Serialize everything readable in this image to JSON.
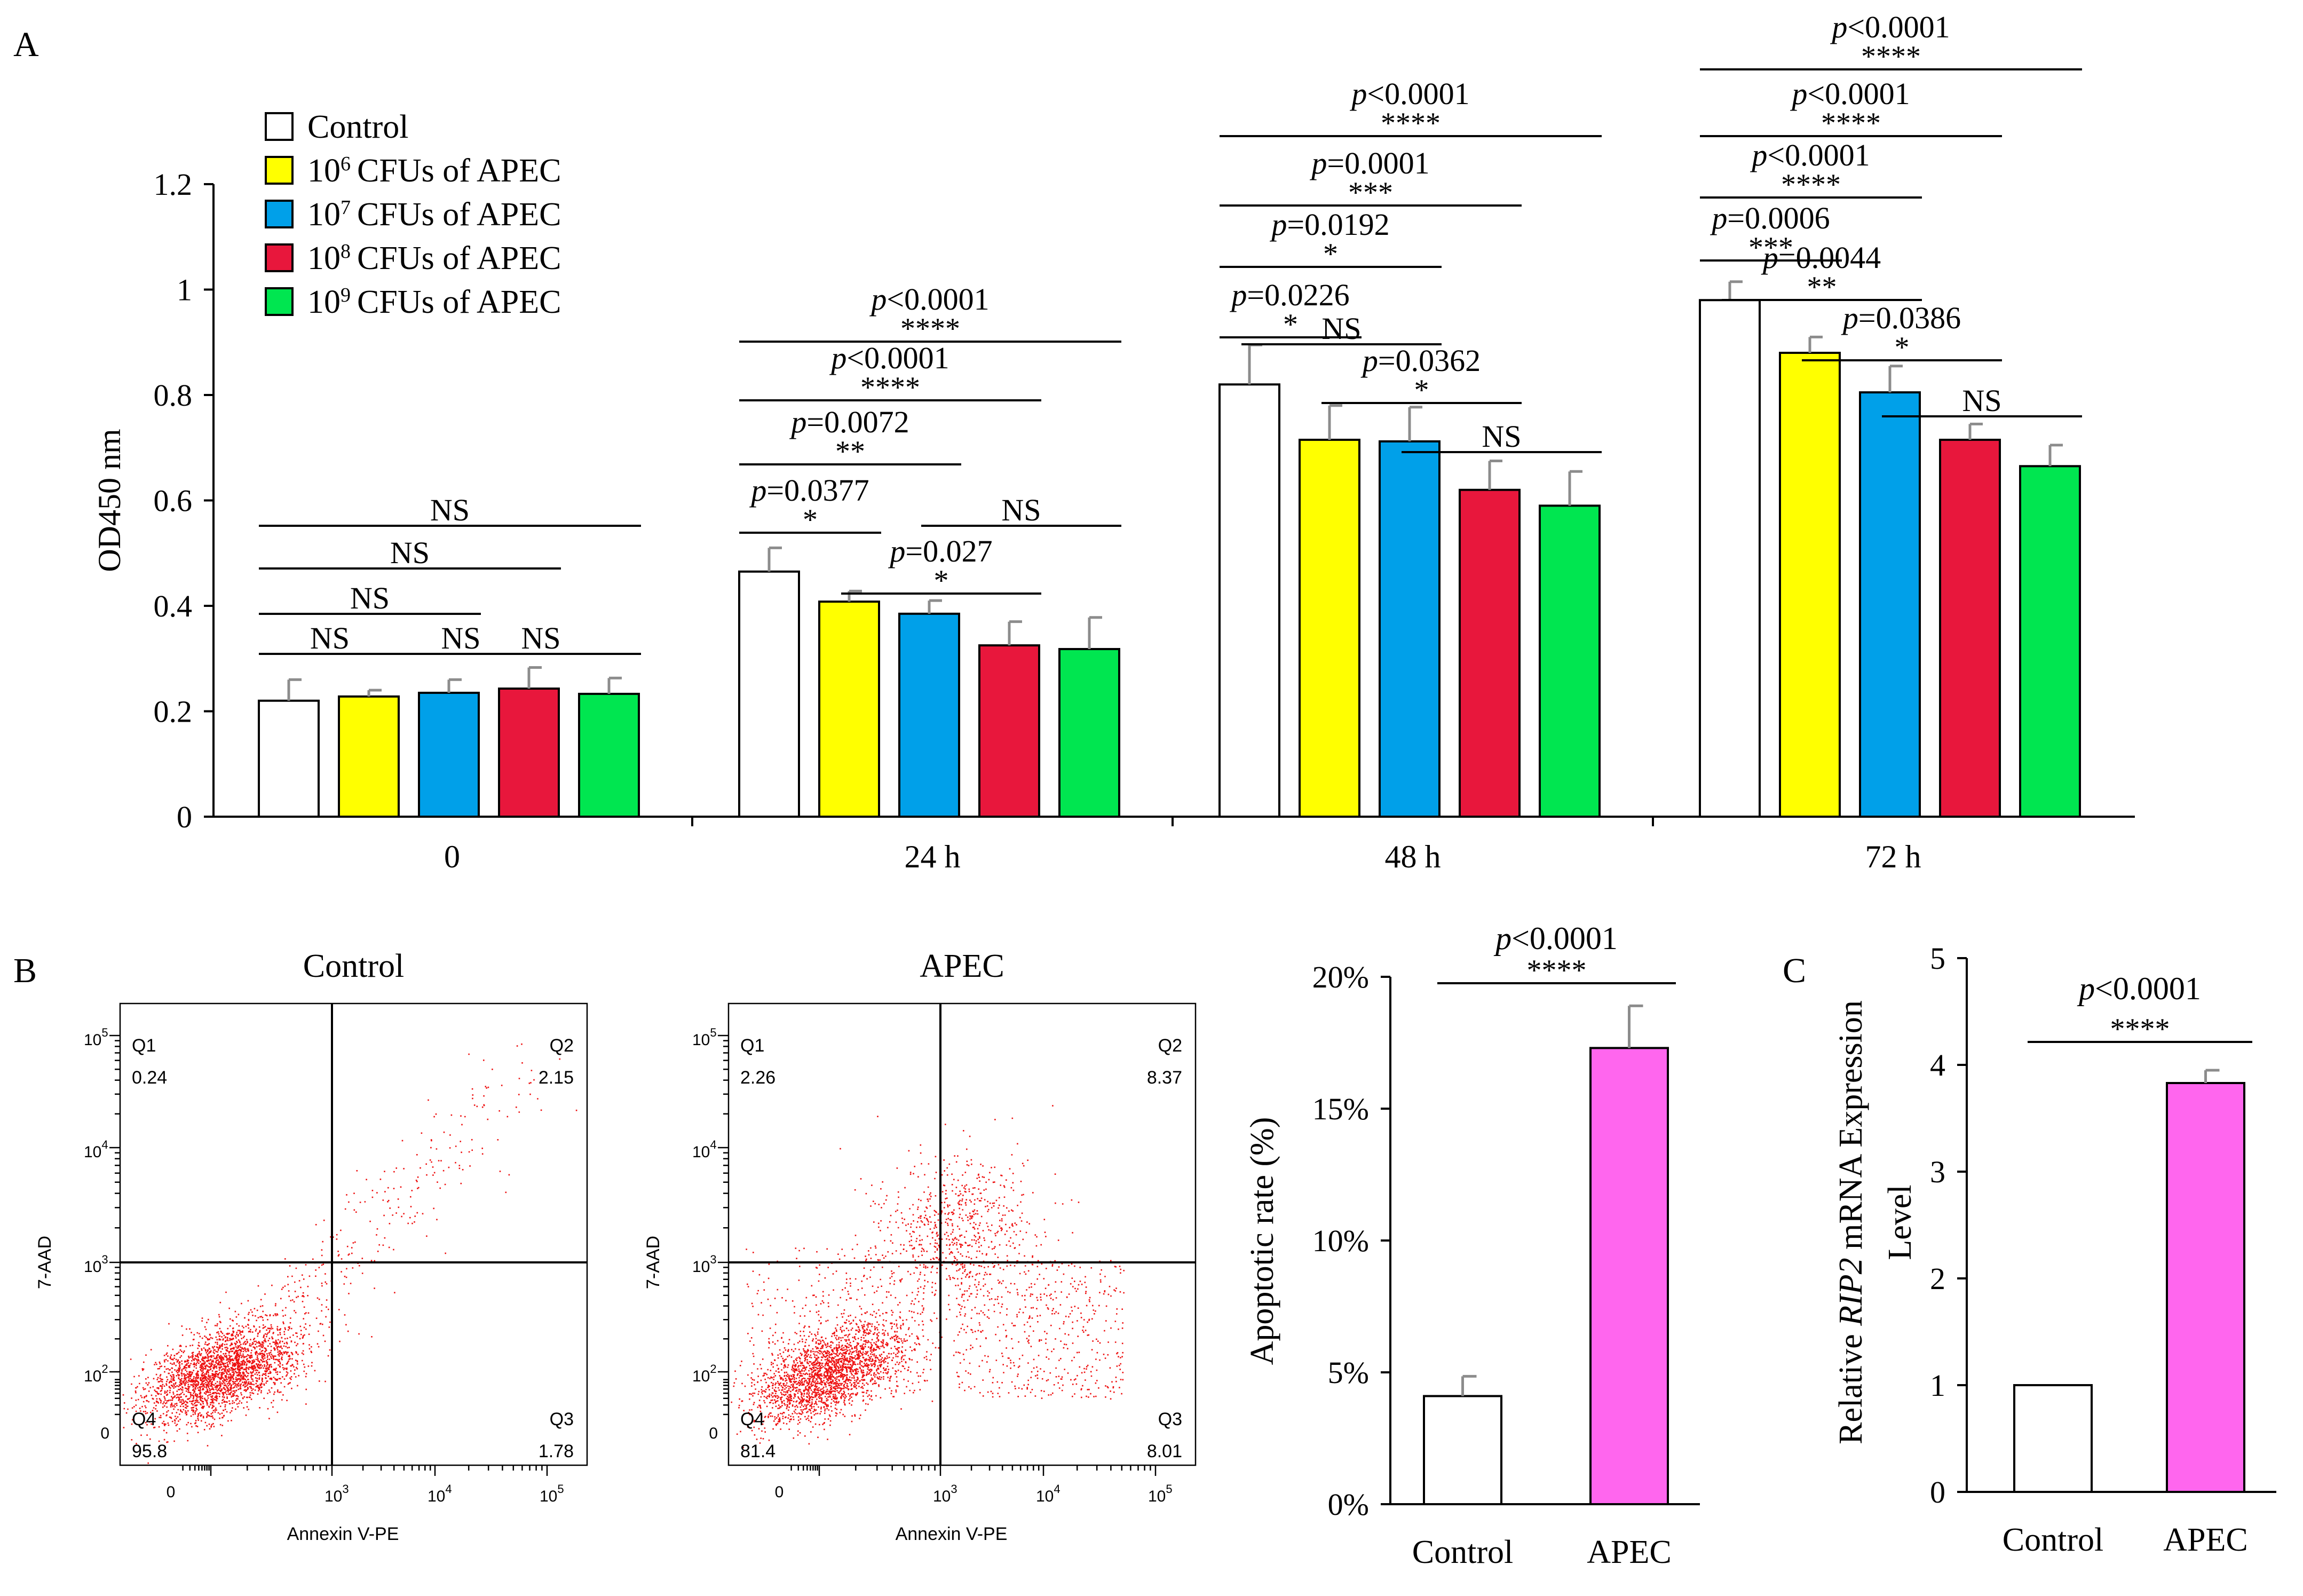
{
  "chart_data": [
    {
      "panel": "A",
      "type": "bar",
      "ylabel": "OD450 nm",
      "ylim": [
        0,
        1.2
      ],
      "yticks": [
        "0",
        "0.2",
        "0.4",
        "0.6",
        "0.8",
        "1",
        "1.2"
      ],
      "categories": [
        "0",
        "24 h",
        "48 h",
        "72 h"
      ],
      "colors": [
        "#ffffff",
        "#ffff00",
        "#00a0e9",
        "#e8173c",
        "#00e650"
      ],
      "series": [
        {
          "name": "Control",
          "values": [
            0.22,
            0.465,
            0.82,
            0.98
          ],
          "errors": [
            0.04,
            0.045,
            0.075,
            0.035
          ]
        },
        {
          "name": "CFUs of APEC",
          "exp": "6",
          "values": [
            0.228,
            0.408,
            0.715,
            0.88
          ],
          "errors": [
            0.012,
            0.02,
            0.065,
            0.03
          ]
        },
        {
          "name": "CFUs of APEC",
          "exp": "7",
          "values": [
            0.235,
            0.385,
            0.712,
            0.805
          ],
          "errors": [
            0.025,
            0.025,
            0.065,
            0.05
          ]
        },
        {
          "name": "CFUs of APEC",
          "exp": "8",
          "values": [
            0.243,
            0.325,
            0.62,
            0.715
          ],
          "errors": [
            0.04,
            0.045,
            0.055,
            0.03
          ]
        },
        {
          "name": "CFUs of APEC",
          "exp": "9",
          "values": [
            0.233,
            0.318,
            0.59,
            0.665
          ],
          "errors": [
            0.03,
            0.06,
            0.065,
            0.04
          ]
        }
      ],
      "comparisons": [
        {
          "group": 0,
          "from": 0,
          "to": 5,
          "p": "",
          "stars": "NS"
        },
        {
          "group": 0,
          "from": 0,
          "to": 4,
          "p": "",
          "stars": "NS"
        },
        {
          "group": 0,
          "from": 0,
          "to": 3,
          "p": "",
          "stars": "NS"
        },
        {
          "group": 0,
          "from": 0,
          "to": 2,
          "p": "",
          "stars": "NS"
        },
        {
          "group": 0,
          "from": 2,
          "to": 4,
          "p": "",
          "stars": "NS"
        },
        {
          "group": 0,
          "from": 3,
          "to": 5,
          "p": "",
          "stars": "NS"
        },
        {
          "group": 1,
          "from": 0,
          "to": 5,
          "p": "<0.0001",
          "stars": "****"
        },
        {
          "group": 1,
          "from": 0,
          "to": 4,
          "p": "<0.0001",
          "stars": "****"
        },
        {
          "group": 1,
          "from": 0,
          "to": 3,
          "p": "=0.0072",
          "stars": "**"
        },
        {
          "group": 1,
          "from": 0,
          "to": 2,
          "p": "=0.0377",
          "stars": "*"
        },
        {
          "group": 1,
          "from": 2,
          "to": 4,
          "p": "=0.027",
          "stars": "*"
        },
        {
          "group": 1,
          "from": 3,
          "to": 5,
          "p": "",
          "stars": "NS"
        },
        {
          "group": 2,
          "from": 0,
          "to": 5,
          "p": "<0.0001",
          "stars": "****"
        },
        {
          "group": 2,
          "from": 0,
          "to": 4,
          "p": "=0.0001",
          "stars": "***"
        },
        {
          "group": 2,
          "from": 0,
          "to": 3,
          "p": "=0.0192",
          "stars": "*"
        },
        {
          "group": 2,
          "from": 0,
          "to": 2,
          "p": "=0.0226",
          "stars": "*"
        },
        {
          "group": 2,
          "from": 1,
          "to": 3,
          "p": "",
          "stars": "NS"
        },
        {
          "group": 2,
          "from": 2,
          "to": 4,
          "p": "=0.0362",
          "stars": "*"
        },
        {
          "group": 2,
          "from": 3,
          "to": 5,
          "p": "",
          "stars": "NS"
        },
        {
          "group": 3,
          "from": 0,
          "to": 5,
          "p": "<0.0001",
          "stars": "****"
        },
        {
          "group": 3,
          "from": 0,
          "to": 4,
          "p": "<0.0001",
          "stars": "****"
        },
        {
          "group": 3,
          "from": 0,
          "to": 3,
          "p": "<0.0001",
          "stars": "****"
        },
        {
          "group": 3,
          "from": 0,
          "to": 2,
          "p": "=0.0006",
          "stars": "***"
        },
        {
          "group": 3,
          "from": 1,
          "to": 3,
          "p": "=0.0044",
          "stars": "**"
        },
        {
          "group": 3,
          "from": 2,
          "to": 4,
          "p": "=0.0386",
          "stars": "*"
        },
        {
          "group": 3,
          "from": 3,
          "to": 5,
          "p": "",
          "stars": "NS"
        }
      ]
    },
    {
      "panel": "B",
      "type": "scatter",
      "subtype": "flow-cytometry",
      "plots": [
        {
          "title": "Control",
          "quadrants": {
            "Q1": "0.24",
            "Q2": "2.15",
            "Q3": "1.78",
            "Q4": "95.8"
          }
        },
        {
          "title": "APEC",
          "quadrants": {
            "Q1": "2.26",
            "Q2": "8.37",
            "Q3": "8.01",
            "Q4": "81.4"
          }
        }
      ],
      "xlabel": "Annexin V-PE",
      "ylabel": "7-AAD",
      "ticks": {
        "zero": "0",
        "base": "10",
        "exps": [
          "2",
          "3",
          "4",
          "5"
        ]
      }
    },
    {
      "panel": "B",
      "type": "bar",
      "ylabel": "Apoptotic rate (%)",
      "ylim": [
        0,
        20
      ],
      "yticks": [
        "0%",
        "5%",
        "10%",
        "15%",
        "20%"
      ],
      "categories": [
        "Control",
        "APEC"
      ],
      "values": [
        4.1,
        17.3
      ],
      "errors": [
        0.75,
        1.6
      ],
      "colors": [
        "#ffffff",
        "#ff66ee"
      ],
      "comparison": {
        "p": "<0.0001",
        "stars": "****"
      }
    },
    {
      "panel": "C",
      "type": "bar",
      "ylabel": "Relative RIP2 mRNA Expression Level",
      "ylabel_parts": {
        "pre": "Relative ",
        "gene": "RIP2",
        "post": " mRNA Expression",
        "line2": "Level"
      },
      "ylim": [
        0,
        5
      ],
      "yticks": [
        "0",
        "1",
        "2",
        "3",
        "4",
        "5"
      ],
      "categories": [
        "Control",
        "APEC"
      ],
      "values": [
        1.0,
        3.83
      ],
      "errors": [
        0.0,
        0.12
      ],
      "colors": [
        "#ffffff",
        "#ff66ee"
      ],
      "comparison": {
        "p": "<0.0001",
        "stars": "****"
      }
    }
  ],
  "panel_labels": {
    "a": "A",
    "b": "B",
    "c": "C"
  },
  "legend": {
    "base": "10",
    "control": "Control"
  },
  "p_symbol": "p"
}
